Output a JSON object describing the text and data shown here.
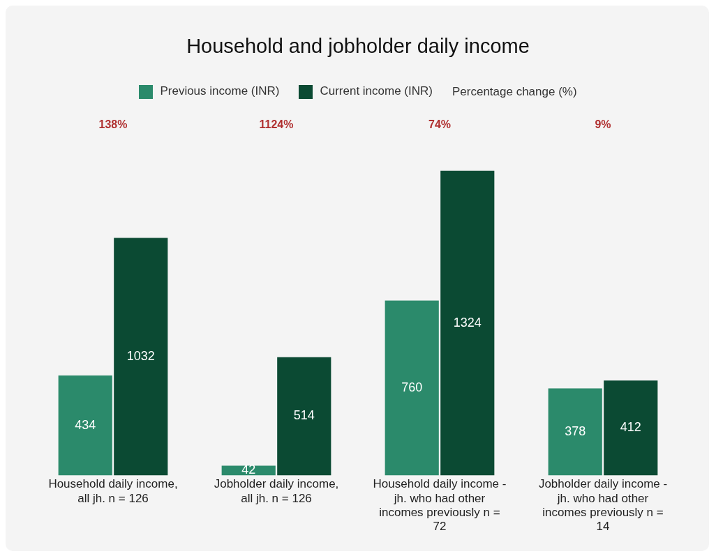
{
  "chart_data": {
    "type": "bar",
    "title": "Household and jobholder daily income",
    "categories": [
      "Household daily income, all jh. n = 126",
      "Jobholder daily income, all jh. n = 126",
      "Household daily income - jh. who had other incomes previously n = 72",
      "Jobholder daily income - jh. who had other incomes previously n = 14"
    ],
    "series": [
      {
        "name": "Previous income (INR)",
        "color": "#2b8a6b",
        "values": [
          434,
          42,
          760,
          378
        ]
      },
      {
        "name": "Current income (INR)",
        "color": "#0b4a33",
        "values": [
          1032,
          514,
          1324,
          412
        ]
      }
    ],
    "data_labels": true,
    "grid": false,
    "legend": "top",
    "annotations": [
      "Percentage change (%)",
      "138%",
      "1124%",
      "74%",
      "9%"
    ]
  }
}
